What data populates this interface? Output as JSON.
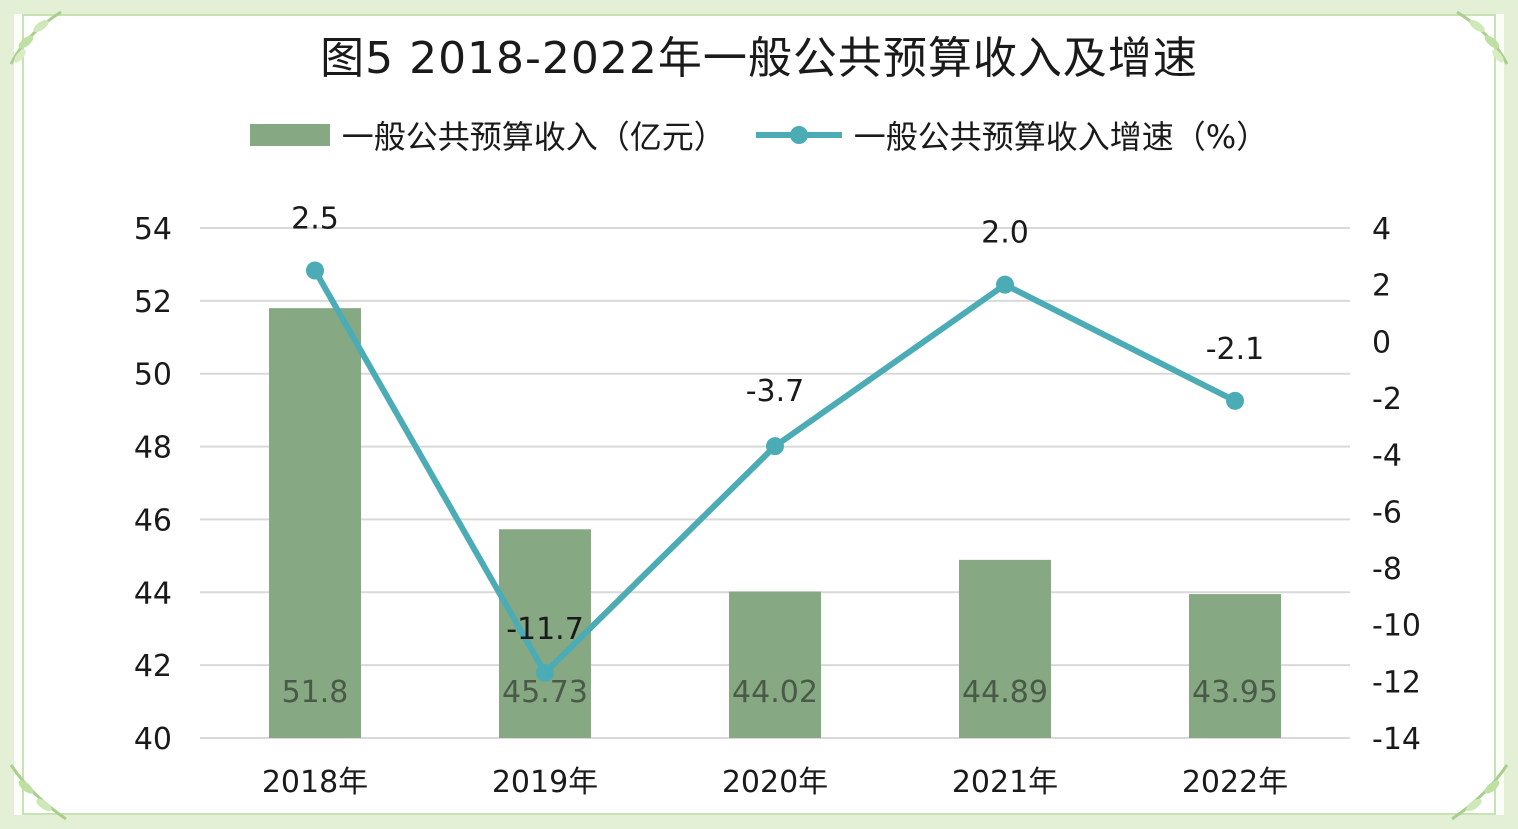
{
  "chart_data": {
    "type": "bar",
    "title": "图5  2018-2022年一般公共预算收入及增速",
    "categories": [
      "2018年",
      "2019年",
      "2020年",
      "2021年",
      "2022年"
    ],
    "series": [
      {
        "name": "一般公共预算收入（亿元）",
        "type": "bar",
        "axis": "left",
        "color": "#86a882",
        "values": [
          51.8,
          45.73,
          44.02,
          44.89,
          43.95
        ],
        "labels": [
          "51.8",
          "45.73",
          "44.02",
          "44.89",
          "43.95"
        ]
      },
      {
        "name": "一般公共预算收入增速（%）",
        "type": "line",
        "axis": "right",
        "color": "#4bacb6",
        "values": [
          2.5,
          -11.7,
          -3.7,
          2.0,
          -2.1
        ],
        "labels": [
          "2.5",
          "-11.7",
          "-3.7",
          "2.0",
          "-2.1"
        ]
      }
    ],
    "y_left": {
      "range": [
        40,
        54
      ],
      "ticks": [
        "40",
        "42",
        "44",
        "46",
        "48",
        "50",
        "52",
        "54"
      ]
    },
    "y_right": {
      "range": [
        -14,
        4
      ],
      "ticks": [
        "-14",
        "-12",
        "-10",
        "-8",
        "-6",
        "-4",
        "-2",
        "0",
        "2",
        "4"
      ]
    },
    "grid": true,
    "legend": "top",
    "gridColor": "#d9d9d9",
    "frameColor": "#e4f0d6"
  }
}
